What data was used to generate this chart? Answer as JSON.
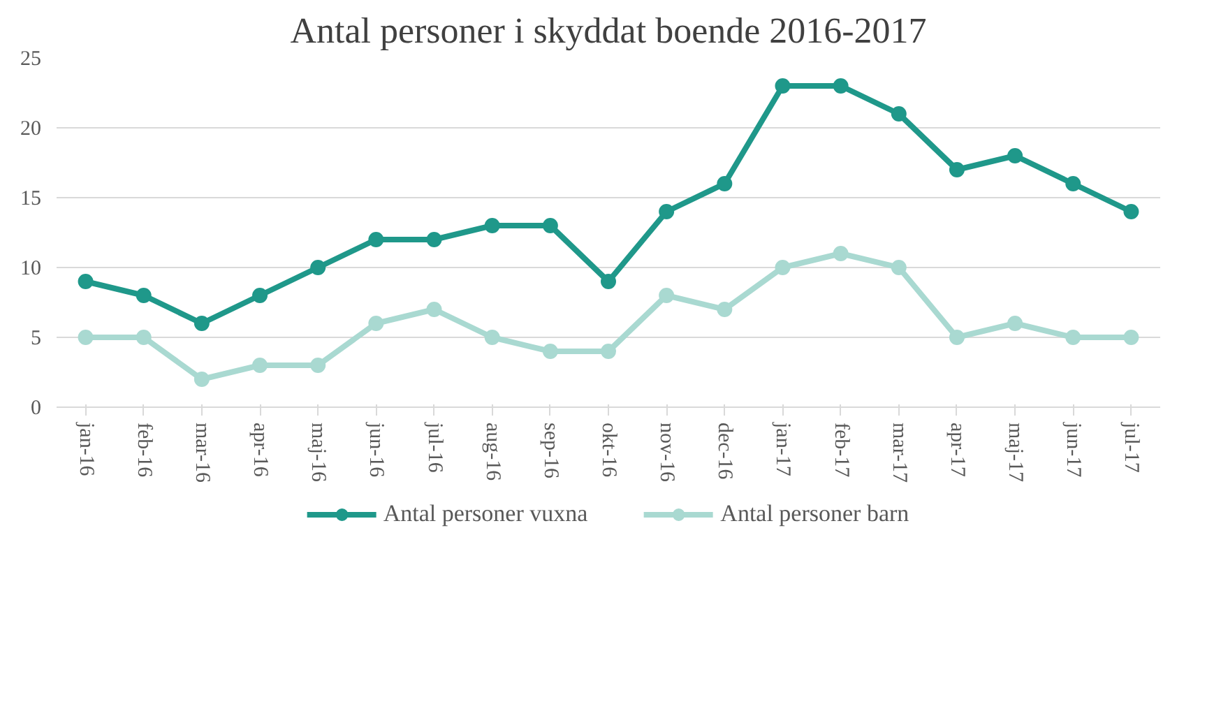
{
  "chart_data": {
    "type": "line",
    "title": "Antal personer i skyddat boende 2016-2017",
    "categories": [
      "jan-16",
      "feb-16",
      "mar-16",
      "apr-16",
      "maj-16",
      "jun-16",
      "jul-16",
      "aug-16",
      "sep-16",
      "okt-16",
      "nov-16",
      "dec-16",
      "jan-17",
      "feb-17",
      "mar-17",
      "apr-17",
      "maj-17",
      "jun-17",
      "jul-17"
    ],
    "series": [
      {
        "name": "Antal personer vuxna",
        "color": "#1f988a",
        "values": [
          9,
          8,
          6,
          8,
          10,
          12,
          12,
          13,
          13,
          9,
          14,
          16,
          23,
          23,
          21,
          17,
          18,
          16,
          14
        ]
      },
      {
        "name": "Antal personer barn",
        "color": "#a9d9d1",
        "values": [
          5,
          5,
          2,
          3,
          3,
          6,
          7,
          5,
          4,
          4,
          8,
          7,
          10,
          11,
          10,
          5,
          6,
          5,
          5
        ]
      }
    ],
    "ylim": [
      0,
      25
    ],
    "yticks": [
      0,
      5,
      10,
      15,
      20,
      25
    ],
    "grid": "y",
    "legend": "bottom",
    "marker": "circle",
    "line_style": "solid"
  }
}
